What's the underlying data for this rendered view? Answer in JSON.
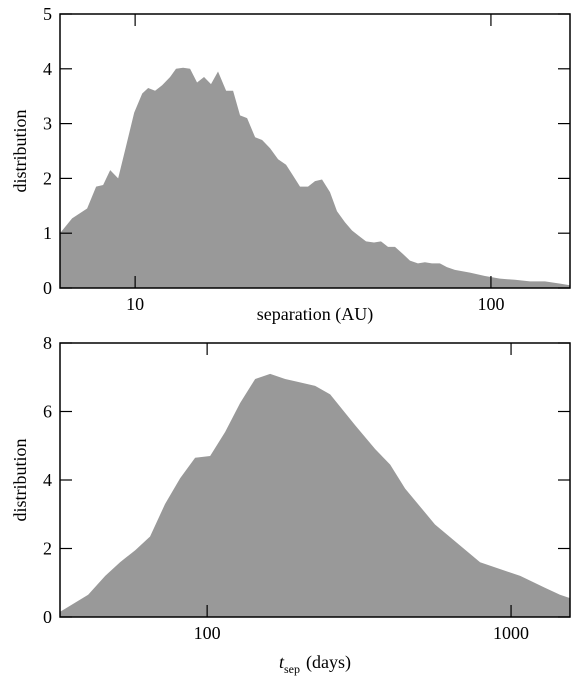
{
  "chart_data": [
    {
      "type": "area",
      "xscale": "log",
      "color": "#999999",
      "xlabel": "separation (AU)",
      "ylabel": "distribution",
      "xlim": [
        6.15,
        166.8
      ],
      "ylim": [
        0,
        5
      ],
      "xticks": [
        10,
        100
      ],
      "yticks": [
        0,
        1,
        2,
        3,
        4,
        5
      ],
      "x": [
        6.15,
        6.65,
        7.33,
        7.77,
        8.13,
        8.51,
        8.96,
        9.44,
        9.94,
        10.47,
        10.88,
        11.38,
        11.91,
        12.54,
        13.03,
        13.64,
        14.27,
        14.93,
        15.62,
        16.34,
        17.1,
        18.02,
        18.85,
        19.72,
        20.64,
        21.74,
        22.75,
        23.95,
        25.22,
        26.56,
        27.79,
        29.07,
        30.61,
        32.03,
        33.52,
        35.29,
        36.93,
        38.88,
        40.7,
        42.58,
        44.56,
        46.92,
        49.09,
        51.37,
        53.75,
        56.59,
        59.21,
        62.34,
        65.23,
        68.25,
        71.86,
        75.2,
        79.18,
        87.3,
        96.2,
        106.0,
        116.8,
        128.8,
        141.9,
        156.4,
        166.8
      ],
      "values": [
        1.0,
        1.27,
        1.45,
        1.85,
        1.88,
        2.15,
        2.0,
        2.6,
        3.2,
        3.55,
        3.65,
        3.6,
        3.7,
        3.85,
        4.0,
        4.02,
        4.0,
        3.75,
        3.85,
        3.72,
        3.95,
        3.6,
        3.6,
        3.15,
        3.1,
        2.75,
        2.7,
        2.55,
        2.35,
        2.25,
        2.05,
        1.85,
        1.85,
        1.95,
        1.98,
        1.75,
        1.4,
        1.2,
        1.05,
        0.95,
        0.85,
        0.83,
        0.85,
        0.75,
        0.75,
        0.62,
        0.5,
        0.45,
        0.47,
        0.45,
        0.45,
        0.38,
        0.33,
        0.28,
        0.22,
        0.17,
        0.15,
        0.12,
        0.12,
        0.08,
        0.05
      ]
    },
    {
      "type": "area",
      "xscale": "log",
      "color": "#999999",
      "xlabel": "t",
      "xlabel_sub": "sep",
      "xlabel_unit": "(days)",
      "ylabel": "distribution",
      "xlim": [
        32.8,
        1563
      ],
      "ylim": [
        0,
        8
      ],
      "xticks": [
        100,
        1000
      ],
      "yticks": [
        0,
        2,
        4,
        6,
        8
      ],
      "x": [
        32.8,
        40.6,
        46.2,
        51.7,
        58.0,
        64.9,
        72.7,
        81.5,
        91.3,
        102.3,
        114.6,
        128.4,
        143.9,
        161.2,
        180.6,
        226.7,
        254.0,
        306.9,
        357.3,
        400.2,
        448.3,
        562.0,
        790.8,
        1072,
        1295,
        1449,
        1563
      ],
      "values": [
        0.15,
        0.65,
        1.2,
        1.6,
        1.95,
        2.35,
        3.3,
        4.05,
        4.65,
        4.7,
        5.4,
        6.25,
        6.95,
        7.1,
        6.95,
        6.75,
        6.5,
        5.6,
        4.9,
        4.45,
        3.75,
        2.7,
        1.6,
        1.2,
        0.85,
        0.65,
        0.55
      ]
    }
  ]
}
